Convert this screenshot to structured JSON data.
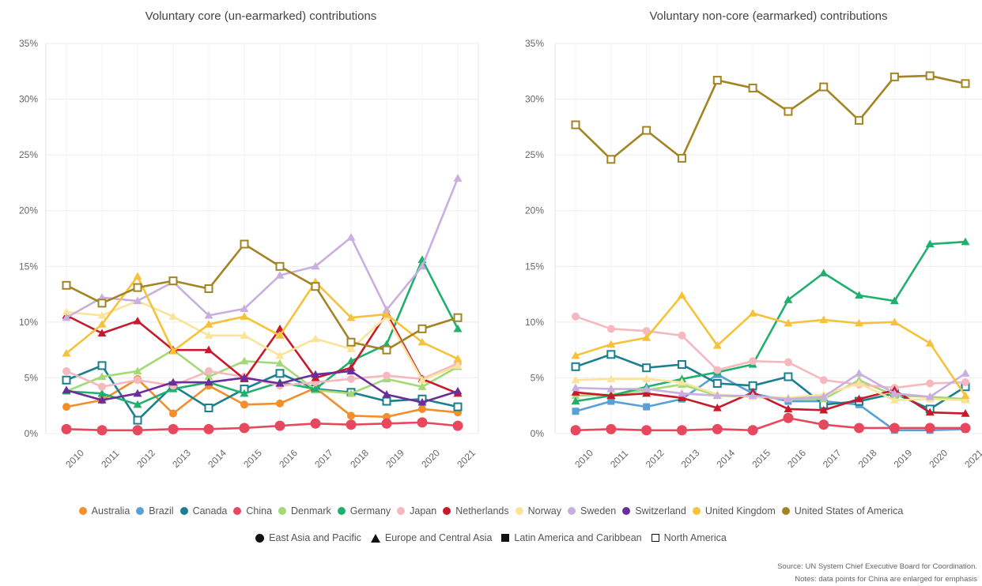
{
  "chart_data": [
    {
      "type": "line",
      "title": "Voluntary core (un-earmarked) contributions",
      "x": [
        "2010",
        "2011",
        "2012",
        "2013",
        "2014",
        "2015",
        "2016",
        "2017",
        "2018",
        "2019",
        "2020",
        "2021"
      ],
      "ylim": [
        0,
        35
      ],
      "yticks": [
        "0%",
        "5%",
        "10%",
        "15%",
        "20%",
        "25%",
        "30%",
        "35%"
      ],
      "grid": true,
      "series": [
        {
          "name": "Australia",
          "values": [
            2.4,
            3.0,
            4.9,
            1.8,
            4.3,
            2.6,
            2.7,
            4.1,
            1.6,
            1.5,
            2.2,
            1.9
          ]
        },
        {
          "name": "Canada",
          "values": [
            4.8,
            6.1,
            1.2,
            4.3,
            2.3,
            4.0,
            5.4,
            4.0,
            3.7,
            2.9,
            3.1,
            2.4
          ]
        },
        {
          "name": "China",
          "values": [
            0.4,
            0.3,
            0.3,
            0.4,
            0.4,
            0.5,
            0.7,
            0.9,
            0.8,
            0.9,
            1.0,
            0.7
          ]
        },
        {
          "name": "Denmark",
          "values": [
            3.8,
            5.1,
            5.6,
            7.5,
            5.1,
            6.5,
            6.3,
            3.9,
            3.6,
            4.9,
            4.2,
            6.0
          ]
        },
        {
          "name": "Germany",
          "values": [
            3.8,
            3.6,
            2.6,
            4.0,
            4.6,
            3.6,
            4.6,
            4.0,
            6.5,
            8.0,
            15.6,
            9.4
          ]
        },
        {
          "name": "Japan",
          "values": [
            5.6,
            4.2,
            4.8,
            4.3,
            5.6,
            5.1,
            4.3,
            4.6,
            4.9,
            5.2,
            4.9,
            6.3
          ]
        },
        {
          "name": "Netherlands",
          "values": [
            10.6,
            9.0,
            10.1,
            7.5,
            7.5,
            4.9,
            9.4,
            5.0,
            5.9,
            10.8,
            4.9,
            3.6
          ]
        },
        {
          "name": "Norway",
          "values": [
            10.9,
            10.6,
            11.9,
            10.5,
            8.8,
            8.8,
            7.0,
            8.5,
            7.6,
            10.5,
            4.8,
            6.1
          ]
        },
        {
          "name": "Sweden",
          "values": [
            10.4,
            12.2,
            11.9,
            13.6,
            10.6,
            11.2,
            14.2,
            15.0,
            17.6,
            11.1,
            15.0,
            22.9
          ]
        },
        {
          "name": "Switzerland",
          "values": [
            3.9,
            3.0,
            3.6,
            4.6,
            4.6,
            5.0,
            4.5,
            5.3,
            5.6,
            3.5,
            2.8,
            3.8
          ]
        },
        {
          "name": "United Kingdom",
          "values": [
            7.2,
            9.8,
            14.1,
            7.4,
            9.8,
            10.5,
            8.8,
            13.6,
            10.4,
            10.7,
            8.2,
            6.7
          ]
        },
        {
          "name": "United States of America",
          "values": [
            13.3,
            11.7,
            13.1,
            13.7,
            13.0,
            17.0,
            15.0,
            13.2,
            8.2,
            7.5,
            9.4,
            10.4
          ]
        }
      ]
    },
    {
      "type": "line",
      "title": "Voluntary non-core (earmarked) contributions",
      "x": [
        "2010",
        "2011",
        "2012",
        "2013",
        "2014",
        "2015",
        "2016",
        "2017",
        "2018",
        "2019",
        "2020",
        "2021"
      ],
      "ylim": [
        0,
        35
      ],
      "yticks": [
        "0%",
        "5%",
        "10%",
        "15%",
        "20%",
        "25%",
        "30%",
        "35%"
      ],
      "grid": true,
      "series": [
        {
          "name": "Brazil",
          "values": [
            2.0,
            2.9,
            2.4,
            3.1,
            5.3,
            3.6,
            2.9,
            2.9,
            2.6,
            0.3,
            0.3,
            0.4
          ]
        },
        {
          "name": "Canada",
          "values": [
            6.0,
            7.1,
            5.9,
            6.2,
            4.5,
            4.3,
            5.1,
            2.6,
            2.9,
            3.6,
            2.2,
            4.2
          ]
        },
        {
          "name": "China",
          "values": [
            0.3,
            0.4,
            0.3,
            0.3,
            0.4,
            0.3,
            1.4,
            0.8,
            0.5,
            0.5,
            0.5,
            0.5
          ]
        },
        {
          "name": "Denmark",
          "values": [
            3.4,
            3.5,
            3.9,
            4.4,
            3.4,
            3.3,
            3.1,
            3.1,
            4.8,
            3.4,
            3.3,
            3.1
          ]
        },
        {
          "name": "Germany",
          "values": [
            2.9,
            3.4,
            4.2,
            4.9,
            5.5,
            6.2,
            12.0,
            14.4,
            12.4,
            11.9,
            17.0,
            17.2
          ]
        },
        {
          "name": "Japan",
          "values": [
            10.5,
            9.4,
            9.2,
            8.8,
            5.7,
            6.5,
            6.4,
            4.8,
            4.4,
            4.1,
            4.5,
            4.6
          ]
        },
        {
          "name": "Netherlands",
          "values": [
            3.7,
            3.4,
            3.6,
            3.2,
            2.3,
            3.7,
            2.2,
            2.1,
            3.1,
            3.9,
            1.9,
            1.8
          ]
        },
        {
          "name": "Norway",
          "values": [
            4.8,
            4.9,
            4.9,
            4.6,
            3.5,
            3.3,
            3.2,
            3.5,
            4.5,
            3.0,
            3.1,
            3.0
          ]
        },
        {
          "name": "Sweden",
          "values": [
            4.1,
            4.0,
            4.0,
            3.6,
            3.4,
            3.4,
            3.1,
            3.3,
            5.4,
            3.6,
            3.3,
            5.4
          ]
        },
        {
          "name": "United Kingdom",
          "values": [
            7.0,
            8.0,
            8.6,
            12.4,
            7.9,
            10.8,
            9.9,
            10.2,
            9.9,
            10.0,
            8.1,
            3.4
          ]
        },
        {
          "name": "United States of America",
          "values": [
            27.7,
            24.6,
            27.2,
            24.7,
            31.7,
            31.0,
            28.9,
            31.1,
            28.1,
            32.0,
            32.1,
            31.4
          ]
        }
      ]
    }
  ],
  "legend": {
    "entities": [
      {
        "name": "Australia",
        "color": "#f28e2b"
      },
      {
        "name": "Brazil",
        "color": "#5aa0d8"
      },
      {
        "name": "Canada",
        "color": "#1a7f8e"
      },
      {
        "name": "China",
        "color": "#e8485e"
      },
      {
        "name": "Denmark",
        "color": "#a3d977"
      },
      {
        "name": "Germany",
        "color": "#20b06d"
      },
      {
        "name": "Japan",
        "color": "#f6b8bf"
      },
      {
        "name": "Netherlands",
        "color": "#c8192c"
      },
      {
        "name": "Norway",
        "color": "#fbe39a"
      },
      {
        "name": "Sweden",
        "color": "#c9aee0"
      },
      {
        "name": "Switzerland",
        "color": "#6a2d9a"
      },
      {
        "name": "United Kingdom",
        "color": "#f6c23a"
      },
      {
        "name": "United States of America",
        "color": "#a28422"
      }
    ],
    "regions": [
      {
        "name": "East Asia and Pacific",
        "shape": "circle"
      },
      {
        "name": "Europe and Central Asia",
        "shape": "triangle"
      },
      {
        "name": "Latin America and Caribbean",
        "shape": "square"
      },
      {
        "name": "North America",
        "shape": "hollow-square"
      }
    ]
  },
  "entity_regions": {
    "Australia": "circle",
    "Brazil": "square",
    "Canada": "hollow-square",
    "China": "circle",
    "Denmark": "triangle",
    "Germany": "triangle",
    "Japan": "circle",
    "Netherlands": "triangle",
    "Norway": "triangle",
    "Sweden": "triangle",
    "Switzerland": "triangle",
    "United Kingdom": "triangle",
    "United States of America": "hollow-square"
  },
  "footer": {
    "source": "Source: UN System Chief Executive Board for Coordination.",
    "notes": "Notes: data points for China are enlarged for emphasis"
  }
}
